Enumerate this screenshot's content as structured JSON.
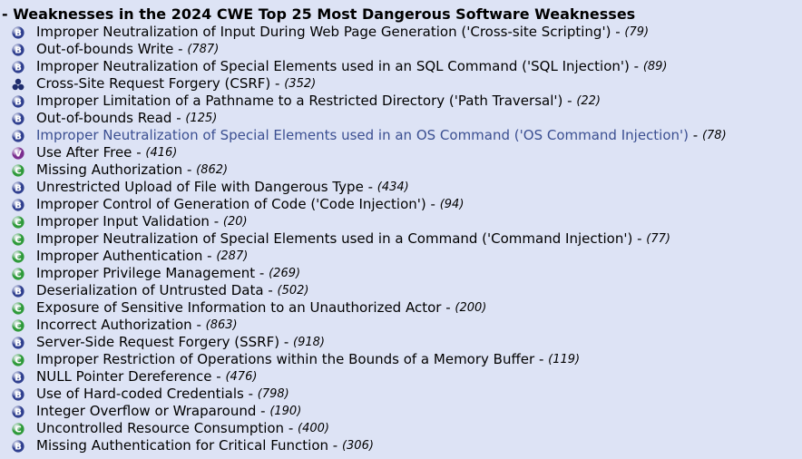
{
  "header": {
    "prefix": "-",
    "title": "Weaknesses in the 2024 CWE Top 25 Most Dangerous Software Weaknesses"
  },
  "badges": {
    "B": {
      "letter": "B",
      "color": "#2f3f8f",
      "name": "base-abstraction-icon"
    },
    "C": {
      "letter": "C",
      "color": "#2e9a3a",
      "name": "class-abstraction-icon"
    },
    "V": {
      "letter": "V",
      "color": "#7b2d8e",
      "name": "variant-abstraction-icon"
    },
    "S": {
      "letter": "",
      "color": "#1f2d6e",
      "name": "composite-icon"
    }
  },
  "items": [
    {
      "badge": "B",
      "name": "Improper Neutralization of Input During Web Page Generation ('Cross-site Scripting')",
      "id": "(79)"
    },
    {
      "badge": "B",
      "name": "Out-of-bounds Write",
      "id": "(787)"
    },
    {
      "badge": "B",
      "name": "Improper Neutralization of Special Elements used in an SQL Command ('SQL Injection')",
      "id": "(89)"
    },
    {
      "badge": "S",
      "name": "Cross-Site Request Forgery (CSRF)",
      "id": "(352)"
    },
    {
      "badge": "B",
      "name": "Improper Limitation of a Pathname to a Restricted Directory ('Path Traversal')",
      "id": "(22)"
    },
    {
      "badge": "B",
      "name": "Out-of-bounds Read",
      "id": "(125)"
    },
    {
      "badge": "B",
      "name": "Improper Neutralization of Special Elements used in an OS Command ('OS Command Injection')",
      "id": "(78)",
      "highlight": true
    },
    {
      "badge": "V",
      "name": "Use After Free",
      "id": "(416)"
    },
    {
      "badge": "C",
      "name": "Missing Authorization",
      "id": "(862)"
    },
    {
      "badge": "B",
      "name": "Unrestricted Upload of File with Dangerous Type",
      "id": "(434)"
    },
    {
      "badge": "B",
      "name": "Improper Control of Generation of Code ('Code Injection')",
      "id": "(94)"
    },
    {
      "badge": "C",
      "name": "Improper Input Validation",
      "id": "(20)"
    },
    {
      "badge": "C",
      "name": "Improper Neutralization of Special Elements used in a Command ('Command Injection')",
      "id": "(77)"
    },
    {
      "badge": "C",
      "name": "Improper Authentication",
      "id": "(287)"
    },
    {
      "badge": "C",
      "name": "Improper Privilege Management",
      "id": "(269)"
    },
    {
      "badge": "B",
      "name": "Deserialization of Untrusted Data",
      "id": "(502)"
    },
    {
      "badge": "C",
      "name": "Exposure of Sensitive Information to an Unauthorized Actor",
      "id": "(200)"
    },
    {
      "badge": "C",
      "name": "Incorrect Authorization",
      "id": "(863)"
    },
    {
      "badge": "B",
      "name": "Server-Side Request Forgery (SSRF)",
      "id": "(918)"
    },
    {
      "badge": "C",
      "name": "Improper Restriction of Operations within the Bounds of a Memory Buffer",
      "id": "(119)"
    },
    {
      "badge": "B",
      "name": "NULL Pointer Dereference",
      "id": "(476)"
    },
    {
      "badge": "B",
      "name": "Use of Hard-coded Credentials",
      "id": "(798)"
    },
    {
      "badge": "B",
      "name": "Integer Overflow or Wraparound",
      "id": "(190)"
    },
    {
      "badge": "C",
      "name": "Uncontrolled Resource Consumption",
      "id": "(400)"
    },
    {
      "badge": "B",
      "name": "Missing Authentication for Critical Function",
      "id": "(306)"
    }
  ],
  "separator": " - "
}
